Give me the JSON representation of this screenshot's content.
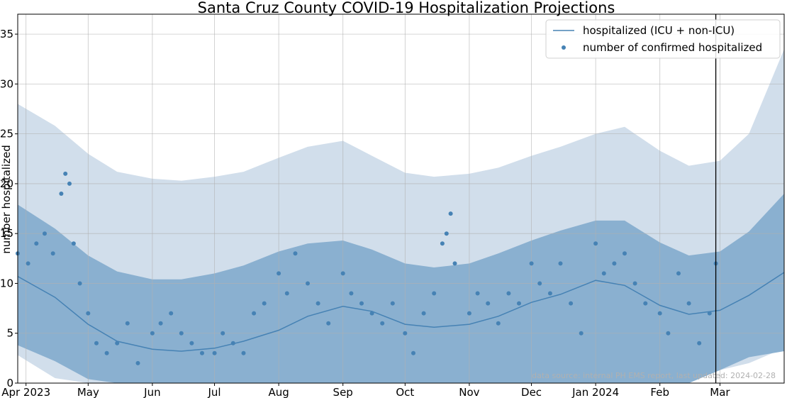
{
  "chart_data": {
    "type": "line",
    "title": "Santa Cruz County COVID-19 Hospitalization Projections",
    "xlabel": "",
    "ylabel": "number hospitalized",
    "ylim": [
      0,
      37
    ],
    "xlim": [
      "2023-03-28",
      "2024-04-01"
    ],
    "grid": true,
    "legend_position": "top-right",
    "x_ticks": [
      {
        "date": "2023-04-01",
        "label": "Apr 2023"
      },
      {
        "date": "2023-05-01",
        "label": "May"
      },
      {
        "date": "2023-06-01",
        "label": "Jun"
      },
      {
        "date": "2023-07-01",
        "label": "Jul"
      },
      {
        "date": "2023-08-01",
        "label": "Aug"
      },
      {
        "date": "2023-09-01",
        "label": "Sep"
      },
      {
        "date": "2023-10-01",
        "label": "Oct"
      },
      {
        "date": "2023-11-01",
        "label": "Nov"
      },
      {
        "date": "2023-12-01",
        "label": "Dec"
      },
      {
        "date": "2024-01-01",
        "label": "Jan 2024"
      },
      {
        "date": "2024-02-01",
        "label": "Feb"
      },
      {
        "date": "2024-03-01",
        "label": "Mar"
      }
    ],
    "y_ticks": [
      0,
      5,
      10,
      15,
      20,
      25,
      30,
      35
    ],
    "vertical_line_date": "2024-02-28",
    "annotation": "data source: internal PH EMS report, last updated: 2024-02-28",
    "colors": {
      "line": "#4682b4",
      "points": "#4682b4",
      "band_inner": "#8ab0d0",
      "band_outer": "#d1deeb",
      "vline": "#000000"
    },
    "series": [
      {
        "name": "hospitalized (ICU + non-ICU)",
        "kind": "line",
        "x": [
          "2023-03-28",
          "2023-04-15",
          "2023-05-01",
          "2023-05-15",
          "2023-06-01",
          "2023-06-15",
          "2023-07-01",
          "2023-07-15",
          "2023-08-01",
          "2023-08-15",
          "2023-09-01",
          "2023-09-15",
          "2023-10-01",
          "2023-10-15",
          "2023-11-01",
          "2023-11-15",
          "2023-12-01",
          "2023-12-15",
          "2024-01-01",
          "2024-01-15",
          "2024-02-01",
          "2024-02-15",
          "2024-03-01",
          "2024-03-15",
          "2024-04-01"
        ],
        "y": [
          10.7,
          8.6,
          5.9,
          4.2,
          3.4,
          3.2,
          3.5,
          4.2,
          5.3,
          6.7,
          7.7,
          7.2,
          5.9,
          5.6,
          5.9,
          6.7,
          8.1,
          8.9,
          10.3,
          9.8,
          7.8,
          6.9,
          7.3,
          8.8,
          11.1
        ]
      },
      {
        "name": "number of confirmed hospitalized",
        "kind": "scatter",
        "x": [
          "2023-03-28",
          "2023-04-02",
          "2023-04-06",
          "2023-04-10",
          "2023-04-14",
          "2023-04-18",
          "2023-04-20",
          "2023-04-22",
          "2023-04-24",
          "2023-04-27",
          "2023-05-01",
          "2023-05-05",
          "2023-05-10",
          "2023-05-15",
          "2023-05-20",
          "2023-05-25",
          "2023-06-01",
          "2023-06-05",
          "2023-06-10",
          "2023-06-15",
          "2023-06-20",
          "2023-06-25",
          "2023-07-01",
          "2023-07-05",
          "2023-07-10",
          "2023-07-15",
          "2023-07-20",
          "2023-07-25",
          "2023-08-01",
          "2023-08-05",
          "2023-08-09",
          "2023-08-15",
          "2023-08-20",
          "2023-08-25",
          "2023-09-01",
          "2023-09-05",
          "2023-09-10",
          "2023-09-15",
          "2023-09-20",
          "2023-09-25",
          "2023-10-01",
          "2023-10-05",
          "2023-10-10",
          "2023-10-15",
          "2023-10-19",
          "2023-10-21",
          "2023-10-23",
          "2023-10-25",
          "2023-11-01",
          "2023-11-05",
          "2023-11-10",
          "2023-11-15",
          "2023-11-20",
          "2023-11-25",
          "2023-12-01",
          "2023-12-05",
          "2023-12-10",
          "2023-12-15",
          "2023-12-20",
          "2023-12-25",
          "2024-01-01",
          "2024-01-05",
          "2024-01-10",
          "2024-01-15",
          "2024-01-20",
          "2024-01-25",
          "2024-02-01",
          "2024-02-05",
          "2024-02-10",
          "2024-02-15",
          "2024-02-20",
          "2024-02-25",
          "2024-02-28"
        ],
        "y": [
          13,
          12,
          14,
          15,
          13,
          19,
          21,
          20,
          14,
          10,
          7,
          4,
          3,
          4,
          6,
          2,
          5,
          6,
          7,
          5,
          4,
          3,
          3,
          5,
          4,
          3,
          7,
          8,
          11,
          9,
          13,
          10,
          8,
          6,
          11,
          9,
          8,
          7,
          6,
          8,
          5,
          3,
          7,
          9,
          14,
          15,
          17,
          12,
          7,
          9,
          8,
          6,
          9,
          8,
          12,
          10,
          9,
          12,
          8,
          5,
          14,
          11,
          12,
          13,
          10,
          8,
          7,
          5,
          11,
          8,
          4,
          7,
          12
        ]
      }
    ],
    "bands": [
      {
        "kind": "outer",
        "x": [
          "2023-03-28",
          "2023-04-15",
          "2023-05-01",
          "2023-05-15",
          "2023-06-01",
          "2023-06-15",
          "2023-07-01",
          "2023-07-15",
          "2023-08-01",
          "2023-08-15",
          "2023-09-01",
          "2023-09-15",
          "2023-10-01",
          "2023-10-15",
          "2023-11-01",
          "2023-11-15",
          "2023-12-01",
          "2023-12-15",
          "2024-01-01",
          "2024-01-15",
          "2024-02-01",
          "2024-02-15",
          "2024-03-01",
          "2024-03-15",
          "2024-04-01"
        ],
        "low": [
          2.8,
          0.5,
          0,
          0,
          0,
          0,
          0,
          0,
          0,
          0,
          0,
          0.8,
          1.2,
          0.8,
          0.5,
          0.8,
          1.8,
          2.9,
          3.6,
          4.3,
          3.3,
          1.7,
          1.3,
          2.0,
          3.5
        ],
        "high": [
          28.0,
          25.8,
          23.0,
          21.2,
          20.5,
          20.3,
          20.7,
          21.2,
          22.6,
          23.7,
          24.3,
          22.8,
          21.1,
          20.7,
          21.0,
          21.6,
          22.8,
          23.7,
          25.0,
          25.7,
          23.3,
          21.8,
          22.3,
          25.0,
          33.5
        ]
      },
      {
        "kind": "inner",
        "x": [
          "2023-03-28",
          "2023-04-15",
          "2023-05-01",
          "2023-05-15",
          "2023-06-01",
          "2023-06-15",
          "2023-07-01",
          "2023-07-15",
          "2023-08-01",
          "2023-08-15",
          "2023-09-01",
          "2023-09-15",
          "2023-10-01",
          "2023-10-15",
          "2023-11-01",
          "2023-11-15",
          "2023-12-01",
          "2023-12-15",
          "2024-01-01",
          "2024-01-15",
          "2024-02-01",
          "2024-02-15",
          "2024-03-01",
          "2024-03-15",
          "2024-04-01"
        ],
        "low": [
          3.8,
          2.2,
          0.4,
          0,
          0,
          0,
          0,
          0,
          0,
          0,
          0,
          0,
          0,
          0,
          0,
          0,
          0,
          0,
          0,
          0,
          0,
          0,
          1.3,
          2.6,
          3.2
        ],
        "high": [
          17.9,
          15.5,
          12.8,
          11.2,
          10.4,
          10.4,
          11.0,
          11.8,
          13.2,
          14.0,
          14.3,
          13.4,
          12.0,
          11.6,
          12.0,
          13.0,
          14.3,
          15.3,
          16.3,
          16.3,
          14.1,
          12.8,
          13.2,
          15.2,
          19.0
        ]
      }
    ]
  }
}
